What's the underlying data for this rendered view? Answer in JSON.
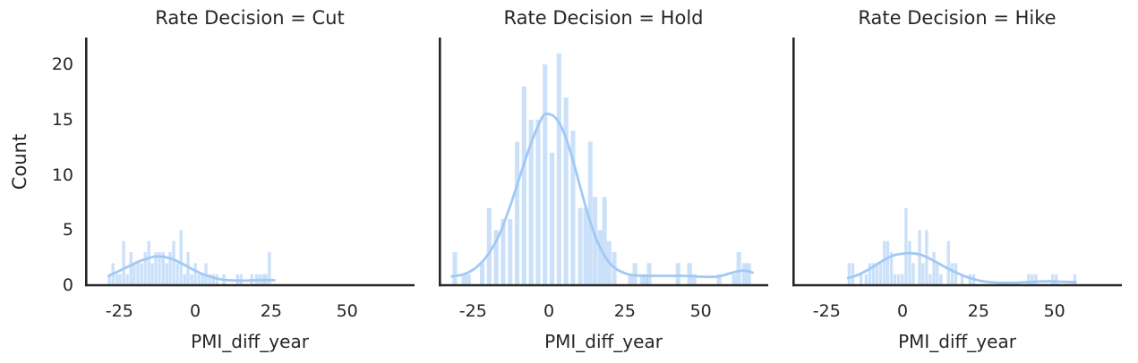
{
  "figure": {
    "ylabel": "Count",
    "xlabel": "PMI_diff_year",
    "y_tick_values": [
      0,
      5,
      10,
      15,
      20
    ],
    "y_tick_labels": [
      "0",
      "5",
      "10",
      "15",
      "20"
    ],
    "x_tick_values": [
      -25,
      0,
      25,
      50
    ],
    "x_tick_labels": [
      "-25",
      "0",
      "25",
      "50"
    ],
    "xlim": [
      -36.3,
      72.2
    ],
    "ylim": [
      0,
      22.35
    ],
    "grid": false,
    "legend": "none",
    "colors": {
      "bar_fill": "rgba(161,201,244,0.55)",
      "kde_line": "#a1c9f4",
      "spine": "#262626",
      "text": "#262626",
      "background": "#ffffff"
    }
  },
  "chart_data": [
    {
      "type": "bar",
      "subtype": "histogram_with_kde",
      "title": "Rate Decision = Cut",
      "xlabel": "PMI_diff_year",
      "ylabel": "Count",
      "bar_width": 1.0,
      "bars": [
        [
          -28.3,
          1
        ],
        [
          -27.1,
          2
        ],
        [
          -25.9,
          1
        ],
        [
          -24.8,
          1
        ],
        [
          -23.6,
          4
        ],
        [
          -22.4,
          1
        ],
        [
          -21.2,
          3
        ],
        [
          -20.1,
          2
        ],
        [
          -18.9,
          2
        ],
        [
          -17.7,
          2
        ],
        [
          -16.5,
          3
        ],
        [
          -15.3,
          4
        ],
        [
          -14.2,
          2
        ],
        [
          -13,
          3
        ],
        [
          -11.8,
          3
        ],
        [
          -10.6,
          3
        ],
        [
          -9.4,
          2
        ],
        [
          -8.3,
          3
        ],
        [
          -7.1,
          4
        ],
        [
          -5.9,
          2
        ],
        [
          -4.7,
          5
        ],
        [
          -3.5,
          1
        ],
        [
          -2.4,
          3
        ],
        [
          -1.2,
          1
        ],
        [
          0,
          2
        ],
        [
          1.2,
          1
        ],
        [
          2.4,
          1
        ],
        [
          3.5,
          2
        ],
        [
          4.7,
          1
        ],
        [
          5.9,
          1
        ],
        [
          7.1,
          1
        ],
        [
          9.4,
          1
        ],
        [
          13.9,
          1
        ],
        [
          15.1,
          1
        ],
        [
          18.6,
          1
        ],
        [
          20.1,
          1
        ],
        [
          21.2,
          1
        ],
        [
          22.4,
          1
        ],
        [
          23.3,
          1
        ],
        [
          24.4,
          3
        ]
      ],
      "kde": [
        [
          -28.5,
          0.85
        ],
        [
          -25,
          1.3
        ],
        [
          -22,
          1.7
        ],
        [
          -19,
          2.1
        ],
        [
          -16,
          2.4
        ],
        [
          -13,
          2.6
        ],
        [
          -10,
          2.55
        ],
        [
          -7,
          2.3
        ],
        [
          -4,
          1.9
        ],
        [
          -1,
          1.45
        ],
        [
          2,
          1.05
        ],
        [
          5,
          0.75
        ],
        [
          8,
          0.55
        ],
        [
          11,
          0.45
        ],
        [
          14,
          0.42
        ],
        [
          17,
          0.42
        ],
        [
          20,
          0.45
        ],
        [
          23,
          0.47
        ],
        [
          26,
          0.45
        ]
      ]
    },
    {
      "type": "bar",
      "subtype": "histogram_with_kde",
      "title": "Rate Decision = Hold",
      "xlabel": "PMI_diff_year",
      "ylabel": "Count",
      "bar_width": 1.5,
      "bars": [
        [
          -31,
          3
        ],
        [
          -28,
          1
        ],
        [
          -26.5,
          1
        ],
        [
          -22,
          2
        ],
        [
          -19.7,
          7
        ],
        [
          -17.4,
          5
        ],
        [
          -15.1,
          6
        ],
        [
          -12.8,
          6
        ],
        [
          -10.5,
          13
        ],
        [
          -8.2,
          18
        ],
        [
          -5.9,
          15
        ],
        [
          -3.6,
          15
        ],
        [
          -1.3,
          20
        ],
        [
          1,
          12
        ],
        [
          3.3,
          21
        ],
        [
          5.6,
          17
        ],
        [
          7.9,
          14
        ],
        [
          10.3,
          7
        ],
        [
          12.1,
          7
        ],
        [
          13.6,
          13
        ],
        [
          15.2,
          8
        ],
        [
          16.8,
          5
        ],
        [
          18.3,
          8
        ],
        [
          19.8,
          4
        ],
        [
          21.5,
          3
        ],
        [
          26.8,
          1
        ],
        [
          28.3,
          2
        ],
        [
          30.7,
          1
        ],
        [
          31.9,
          1
        ],
        [
          33,
          2
        ],
        [
          42.5,
          2
        ],
        [
          46.3,
          2
        ],
        [
          47.8,
          1
        ],
        [
          56,
          1
        ],
        [
          61,
          1
        ],
        [
          62.5,
          3
        ],
        [
          64.3,
          2
        ],
        [
          65.8,
          2
        ]
      ],
      "kde": [
        [
          -32,
          0.8
        ],
        [
          -28,
          1.0
        ],
        [
          -24,
          1.6
        ],
        [
          -20,
          2.8
        ],
        [
          -16,
          4.8
        ],
        [
          -12,
          7.8
        ],
        [
          -8,
          11.2
        ],
        [
          -5,
          13.5
        ],
        [
          -2,
          15.3
        ],
        [
          0,
          15.5
        ],
        [
          2,
          15.2
        ],
        [
          4,
          14.4
        ],
        [
          6,
          13.0
        ],
        [
          8,
          11.2
        ],
        [
          10,
          9.2
        ],
        [
          12,
          7.2
        ],
        [
          14,
          5.4
        ],
        [
          16,
          3.9
        ],
        [
          18,
          2.8
        ],
        [
          20,
          2.0
        ],
        [
          22,
          1.5
        ],
        [
          24,
          1.2
        ],
        [
          26,
          1.0
        ],
        [
          28,
          0.9
        ],
        [
          32,
          0.85
        ],
        [
          36,
          0.85
        ],
        [
          40,
          0.85
        ],
        [
          44,
          0.85
        ],
        [
          48,
          0.8
        ],
        [
          52,
          0.75
        ],
        [
          56,
          0.8
        ],
        [
          60,
          1.1
        ],
        [
          63,
          1.3
        ],
        [
          65,
          1.3
        ],
        [
          67,
          1.15
        ]
      ]
    },
    {
      "type": "bar",
      "subtype": "histogram_with_kde",
      "title": "Rate Decision = Hike",
      "xlabel": "PMI_diff_year",
      "ylabel": "Count",
      "bar_width": 1.0,
      "bars": [
        [
          -17.6,
          2
        ],
        [
          -16.4,
          2
        ],
        [
          -13.7,
          1
        ],
        [
          -12,
          1
        ],
        [
          -10.8,
          2
        ],
        [
          -9.6,
          2
        ],
        [
          -8.4,
          2
        ],
        [
          -7.2,
          2
        ],
        [
          -6,
          4
        ],
        [
          -4.9,
          4
        ],
        [
          -3.7,
          3
        ],
        [
          -2.5,
          1
        ],
        [
          -1.3,
          1
        ],
        [
          -0.1,
          1
        ],
        [
          1.1,
          7
        ],
        [
          2.3,
          4
        ],
        [
          3.5,
          2
        ],
        [
          5.6,
          5
        ],
        [
          6.7,
          2
        ],
        [
          7.9,
          5
        ],
        [
          9.1,
          1
        ],
        [
          10.3,
          3
        ],
        [
          11.4,
          2
        ],
        [
          12.6,
          1
        ],
        [
          15.1,
          4
        ],
        [
          16.3,
          2
        ],
        [
          17.5,
          2
        ],
        [
          19.6,
          1
        ],
        [
          22.2,
          1
        ],
        [
          23.4,
          1
        ],
        [
          41.5,
          1
        ],
        [
          42.7,
          1
        ],
        [
          43.9,
          1
        ],
        [
          49.4,
          1
        ],
        [
          50.6,
          1
        ],
        [
          56.7,
          1
        ]
      ],
      "kde": [
        [
          -18,
          0.65
        ],
        [
          -15,
          0.9
        ],
        [
          -12,
          1.3
        ],
        [
          -9,
          1.8
        ],
        [
          -6,
          2.3
        ],
        [
          -3,
          2.7
        ],
        [
          0,
          2.85
        ],
        [
          3,
          2.9
        ],
        [
          6,
          2.75
        ],
        [
          9,
          2.4
        ],
        [
          12,
          1.95
        ],
        [
          15,
          1.5
        ],
        [
          18,
          1.1
        ],
        [
          21,
          0.75
        ],
        [
          24,
          0.5
        ],
        [
          27,
          0.33
        ],
        [
          30,
          0.25
        ],
        [
          33,
          0.22
        ],
        [
          36,
          0.22
        ],
        [
          39,
          0.25
        ],
        [
          42,
          0.3
        ],
        [
          45,
          0.33
        ],
        [
          48,
          0.35
        ],
        [
          51,
          0.33
        ],
        [
          54,
          0.3
        ],
        [
          57,
          0.27
        ]
      ]
    }
  ]
}
